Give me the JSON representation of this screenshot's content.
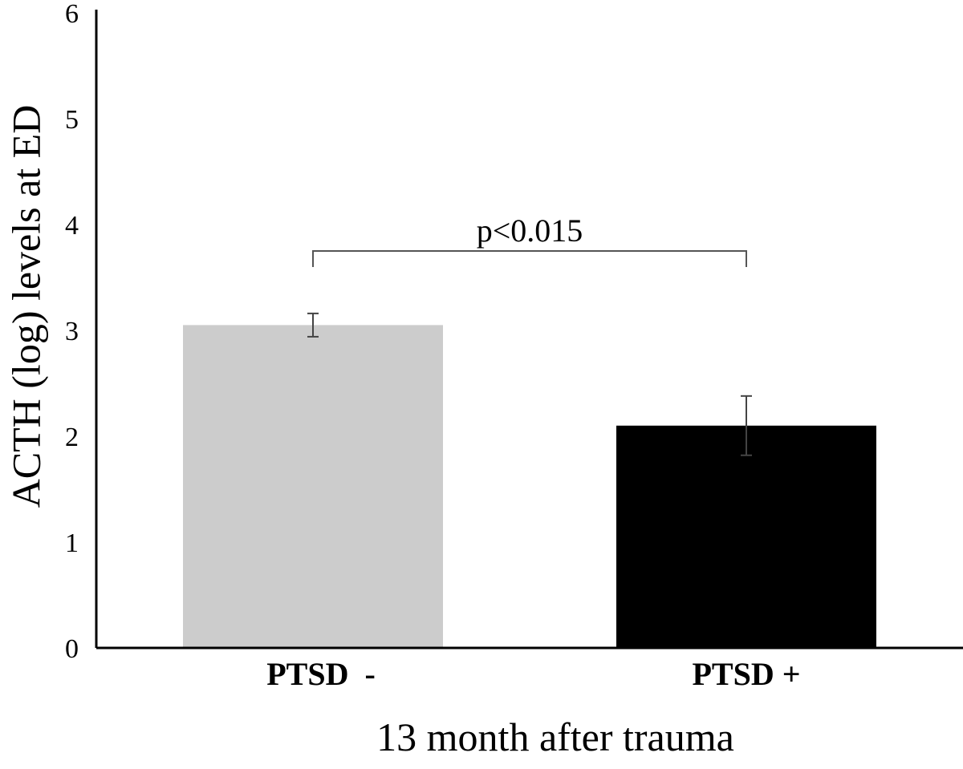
{
  "chart_data": {
    "type": "bar",
    "categories": [
      "PTSD  -",
      "PTSD +"
    ],
    "series": [
      {
        "values": [
          3.05,
          2.1
        ],
        "error": [
          0.11,
          0.28
        ]
      }
    ],
    "bar_colors": [
      "#cccccc",
      "#000000"
    ],
    "title": "",
    "xlabel": "13 month after trauma",
    "ylabel": "ACTH (log) levels at ED",
    "ylim": [
      0,
      6
    ],
    "yticks": [
      "0",
      "1",
      "2",
      "3",
      "4",
      "5",
      "6"
    ],
    "grid": false,
    "annotations": [
      {
        "text": "p<0.015",
        "between": [
          0,
          1
        ],
        "level": 3.75
      }
    ]
  }
}
